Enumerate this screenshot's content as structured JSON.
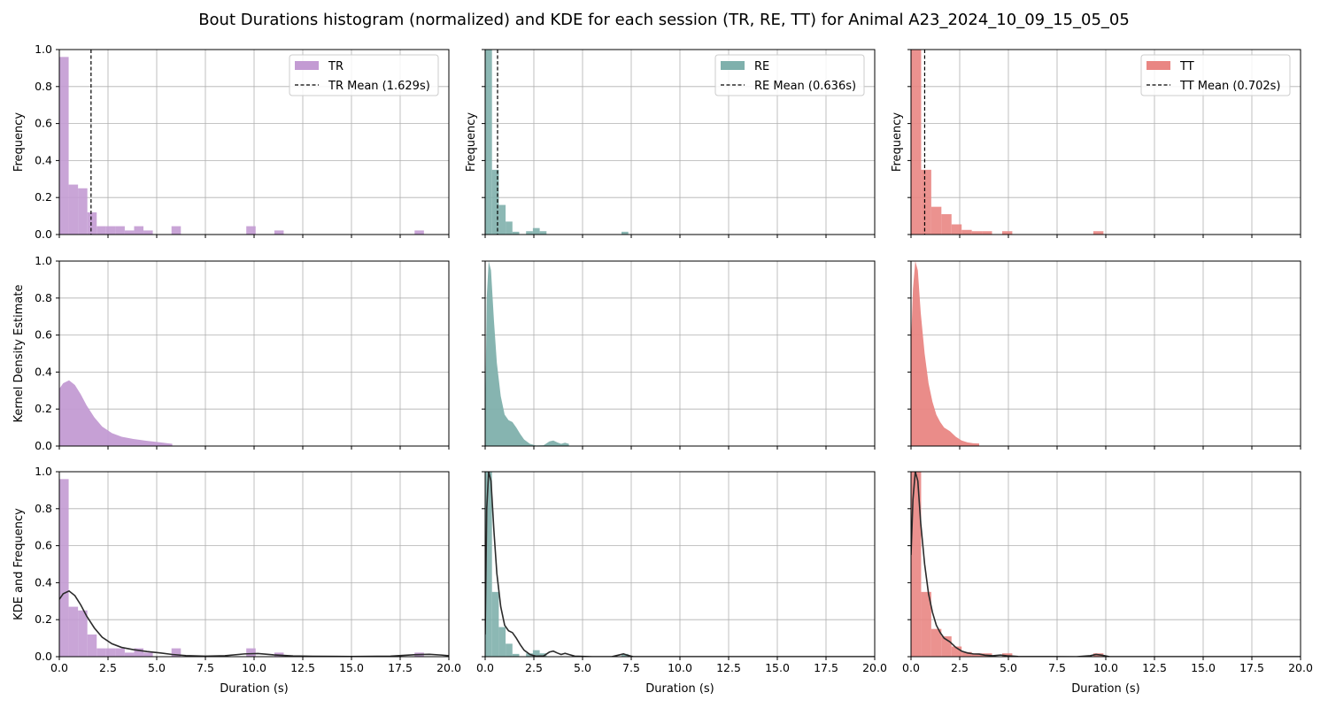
{
  "figure": {
    "title": "Bout Durations histogram (normalized) and KDE for each session (TR, RE, TT) for Animal A23_2024_10_09_15_05_05"
  },
  "chart_data": {
    "type": "histogram-kde-grid",
    "xlim": [
      0,
      20
    ],
    "ylim": [
      0,
      1
    ],
    "xticks": [
      "0.0",
      "2.5",
      "5.0",
      "7.5",
      "10.0",
      "12.5",
      "15.0",
      "17.5",
      "20.0"
    ],
    "yticks": [
      "0.0",
      "0.2",
      "0.4",
      "0.6",
      "0.8",
      "1.0"
    ],
    "xlabel": "Duration (s)",
    "ylabels": [
      "Frequency",
      "Kernel Density Estimate",
      "KDE and Frequency"
    ],
    "grid": true,
    "legend_location": "top-right",
    "kde_line_color": "#2b2b2b",
    "sessions": [
      {
        "name": "TR",
        "color": "#c39bd3",
        "mean_label": "TR Mean (1.629s)",
        "mean": 1.629,
        "bin_width": 0.48,
        "hist": [
          0.96,
          0.27,
          0.25,
          0.12,
          0.045,
          0.045,
          0.045,
          0.022,
          0.045,
          0.022,
          0,
          0,
          0.045,
          0,
          0,
          0,
          0,
          0,
          0,
          0,
          0.045,
          0,
          0,
          0.022,
          0,
          0,
          0,
          0,
          0,
          0,
          0,
          0,
          0,
          0,
          0,
          0,
          0,
          0,
          0.022
        ],
        "kde": [
          [
            0,
            0.31
          ],
          [
            0.2,
            0.34
          ],
          [
            0.5,
            0.355
          ],
          [
            0.8,
            0.33
          ],
          [
            1.1,
            0.28
          ],
          [
            1.4,
            0.22
          ],
          [
            1.8,
            0.155
          ],
          [
            2.2,
            0.105
          ],
          [
            2.7,
            0.07
          ],
          [
            3.2,
            0.05
          ],
          [
            3.8,
            0.038
          ],
          [
            4.5,
            0.028
          ],
          [
            5.2,
            0.02
          ],
          [
            5.8,
            0.012
          ],
          [
            6.5,
            0.006
          ],
          [
            7.5,
            0.003
          ],
          [
            8.5,
            0.005
          ],
          [
            9.5,
            0.015
          ],
          [
            10.2,
            0.017
          ],
          [
            11,
            0.01
          ],
          [
            12,
            0.004
          ],
          [
            13,
            0.002
          ],
          [
            15,
            0.001
          ],
          [
            17,
            0.003
          ],
          [
            18.3,
            0.011
          ],
          [
            19,
            0.013
          ],
          [
            19.6,
            0.009
          ],
          [
            20,
            0.005
          ]
        ],
        "kde_fill_end": 6.0
      },
      {
        "name": "RE",
        "color": "#7fb0ac",
        "mean_label": "RE Mean (0.636s)",
        "mean": 0.636,
        "bin_width": 0.35,
        "hist": [
          1.0,
          0.35,
          0.16,
          0.07,
          0.015,
          0,
          0.018,
          0.035,
          0.018,
          0,
          0,
          0,
          0,
          0,
          0,
          0,
          0,
          0,
          0,
          0,
          0.015
        ],
        "kde": [
          [
            0,
            0.12
          ],
          [
            0.08,
            0.8
          ],
          [
            0.18,
            1.05
          ],
          [
            0.3,
            0.95
          ],
          [
            0.45,
            0.68
          ],
          [
            0.6,
            0.45
          ],
          [
            0.8,
            0.27
          ],
          [
            1.0,
            0.17
          ],
          [
            1.2,
            0.14
          ],
          [
            1.4,
            0.13
          ],
          [
            1.6,
            0.1
          ],
          [
            1.8,
            0.065
          ],
          [
            2.0,
            0.035
          ],
          [
            2.3,
            0.012
          ],
          [
            2.6,
            0.003
          ],
          [
            3.0,
            0.004
          ],
          [
            3.3,
            0.025
          ],
          [
            3.5,
            0.03
          ],
          [
            3.7,
            0.02
          ],
          [
            3.9,
            0.012
          ],
          [
            4.1,
            0.018
          ],
          [
            4.3,
            0.012
          ],
          [
            4.6,
            0.003
          ],
          [
            5.5,
            0.0
          ],
          [
            6.5,
            0.0
          ],
          [
            6.9,
            0.01
          ],
          [
            7.1,
            0.015
          ],
          [
            7.3,
            0.008
          ],
          [
            7.6,
            0.0
          ],
          [
            20,
            0
          ]
        ],
        "kde_fill_end": 4.5
      },
      {
        "name": "TT",
        "color": "#e98683",
        "mean_label": "TT Mean (0.702s)",
        "mean": 0.702,
        "bin_width": 0.52,
        "hist": [
          1.0,
          0.35,
          0.15,
          0.11,
          0.055,
          0.025,
          0.018,
          0.018,
          0,
          0.018,
          0,
          0,
          0,
          0,
          0,
          0,
          0,
          0,
          0.018
        ],
        "kde": [
          [
            0,
            0.55
          ],
          [
            0.1,
            0.85
          ],
          [
            0.22,
            1.03
          ],
          [
            0.35,
            0.95
          ],
          [
            0.5,
            0.72
          ],
          [
            0.7,
            0.5
          ],
          [
            0.9,
            0.34
          ],
          [
            1.1,
            0.24
          ],
          [
            1.3,
            0.17
          ],
          [
            1.5,
            0.13
          ],
          [
            1.7,
            0.1
          ],
          [
            2.0,
            0.08
          ],
          [
            2.3,
            0.05
          ],
          [
            2.6,
            0.03
          ],
          [
            2.9,
            0.02
          ],
          [
            3.2,
            0.015
          ],
          [
            3.5,
            0.014
          ],
          [
            3.8,
            0.008
          ],
          [
            4.2,
            0.005
          ],
          [
            4.6,
            0.009
          ],
          [
            4.9,
            0.005
          ],
          [
            5.5,
            0.001
          ],
          [
            8.5,
            0.0
          ],
          [
            9.2,
            0.005
          ],
          [
            9.5,
            0.012
          ],
          [
            9.8,
            0.008
          ],
          [
            10.2,
            0.0
          ],
          [
            20,
            0
          ]
        ],
        "kde_fill_end": 3.6
      }
    ]
  }
}
